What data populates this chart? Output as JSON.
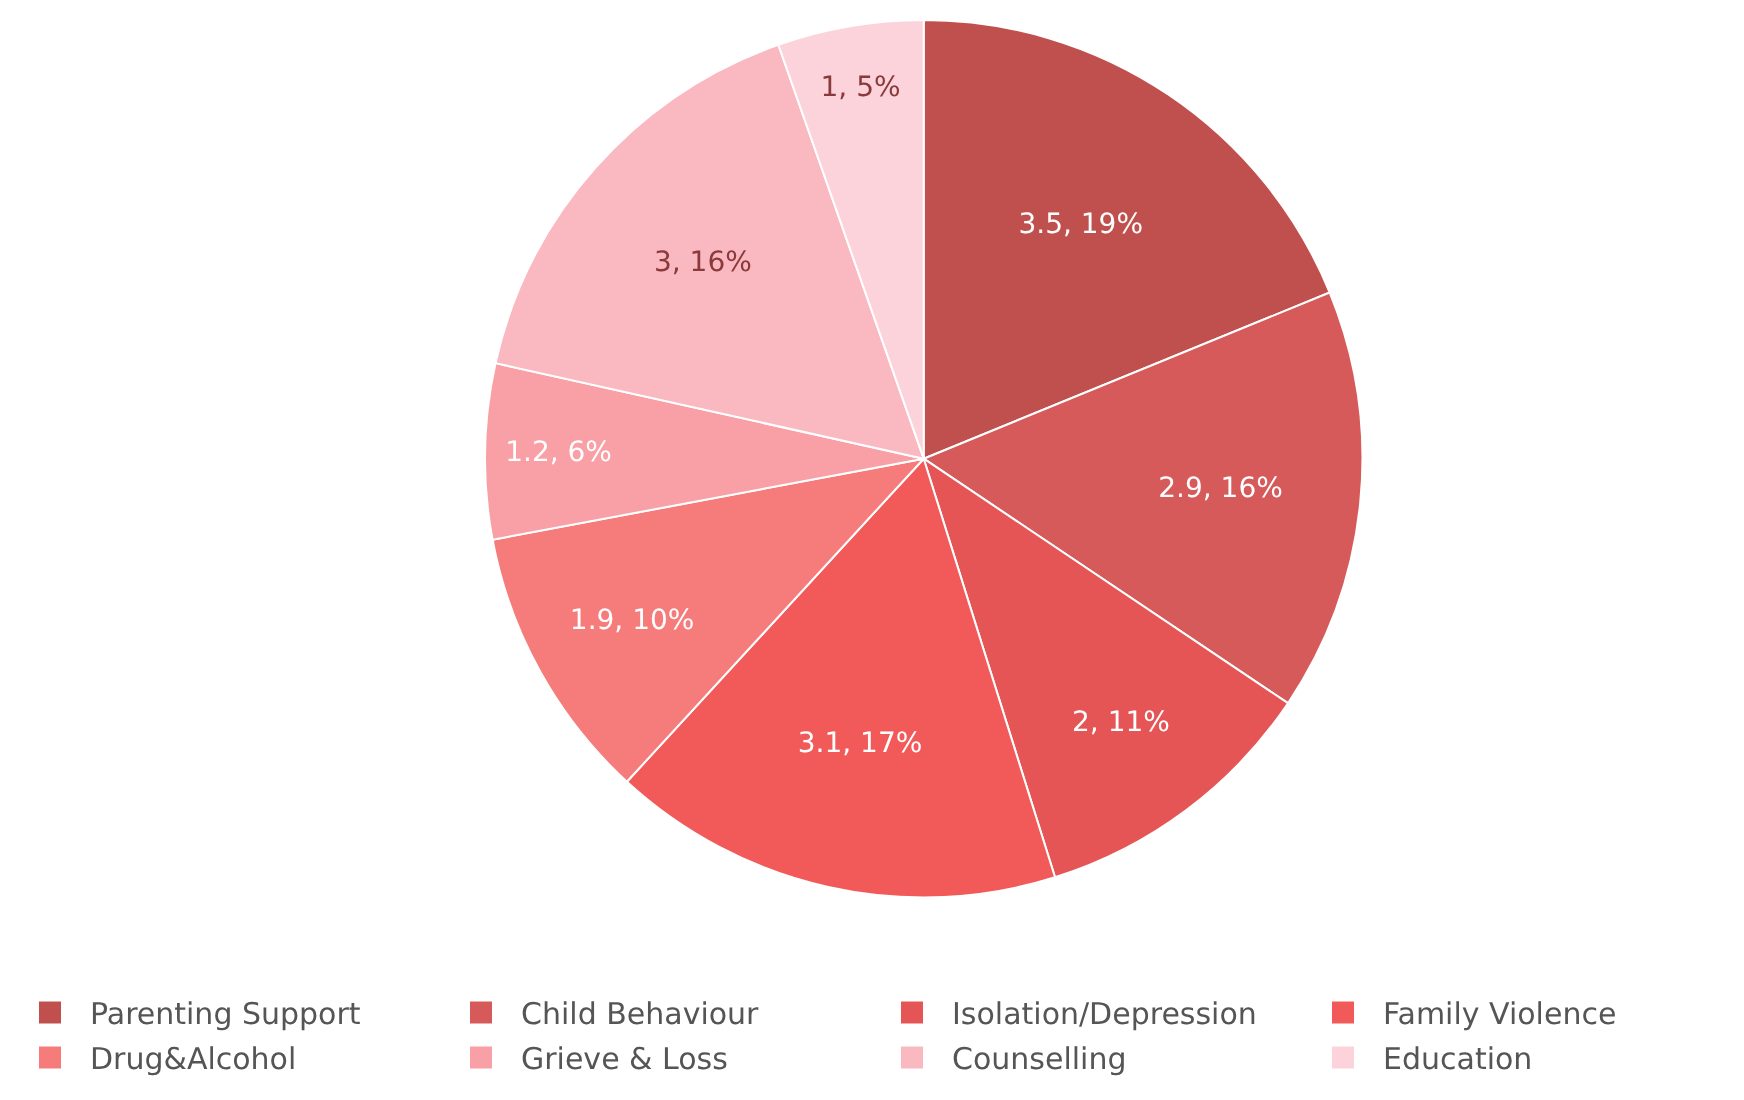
{
  "chart_data": {
    "type": "pie",
    "categories": [
      "Parenting Support",
      "Child Behaviour",
      "Isolation/Depression",
      "Family Violence",
      "Drug&Alcohol",
      "Grieve & Loss",
      "Counselling",
      "Education"
    ],
    "values": [
      3.5,
      2.9,
      2,
      3.1,
      1.9,
      1.2,
      3,
      1
    ],
    "value_labels": [
      "3.5, 19%",
      "2.9, 16%",
      "2, 11%",
      "3.1, 17%",
      "1.9, 10%",
      "1.2, 6%",
      "3, 16%",
      "1, 5%"
    ],
    "colors": [
      "#c0504d",
      "#d65a5a",
      "#e65555",
      "#f25a5a",
      "#f67c7c",
      "#f8a0a6",
      "#fab8c0",
      "#fcd3da"
    ],
    "legend": "bottom"
  }
}
